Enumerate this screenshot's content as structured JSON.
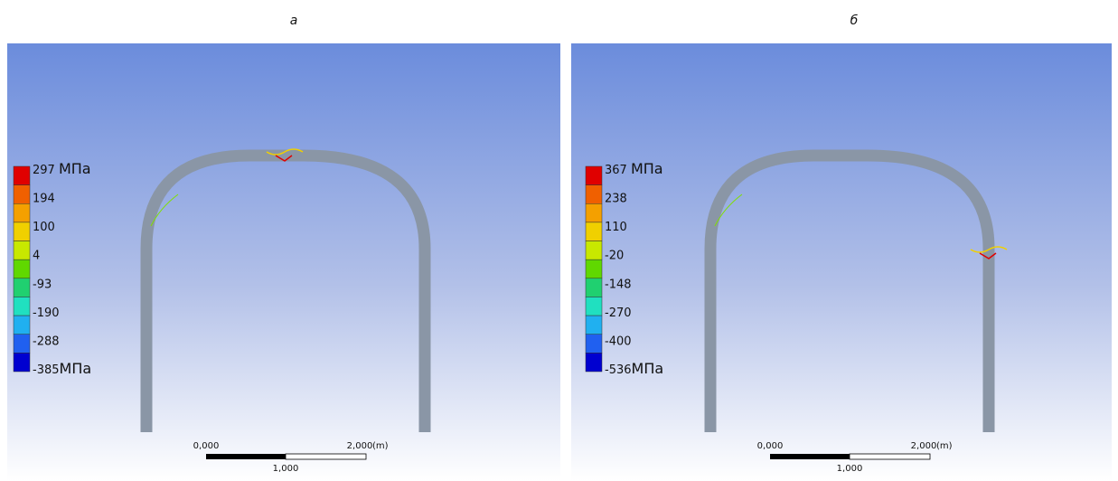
{
  "panels": [
    {
      "label": "а",
      "legend": {
        "labels": [
          "297",
          "194",
          "100",
          "4",
          "-93",
          "-190",
          "-288",
          "-385"
        ],
        "top_unit": "МПа",
        "bottom_unit": "МПа"
      },
      "scale_bar": {
        "start": "0,000",
        "end": "2,000",
        "unit": "(m)",
        "middle": "1,000"
      }
    },
    {
      "label": "б",
      "legend": {
        "labels": [
          "367",
          "238",
          "110",
          "-20",
          "-148",
          "-270",
          "-400",
          "-536"
        ],
        "top_unit": "МПа",
        "bottom_unit": "МПа"
      },
      "scale_bar": {
        "start": "0,000",
        "end": "2,000",
        "unit": "(m)",
        "middle": "1,000"
      }
    }
  ]
}
